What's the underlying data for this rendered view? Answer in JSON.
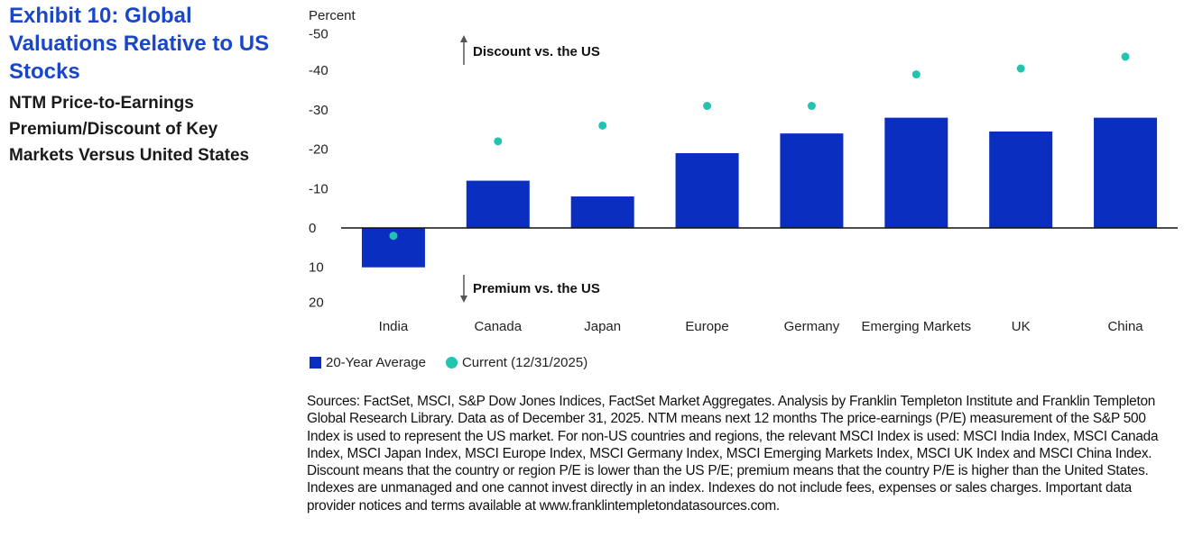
{
  "header": {
    "exhibit_title": "Exhibit 10: Global Valuations Relative to US Stocks",
    "subtitle": "NTM Price-to-Earnings Premium/Discount of Key Markets Versus United States"
  },
  "colors": {
    "title_blue": "#1a47c9",
    "bar": "#0a2fc0",
    "dot": "#22c4b0"
  },
  "chart_data": {
    "type": "bar",
    "title": "NTM Price-to-Earnings Premium/Discount of Key Markets Versus United States",
    "ylabel": "Percent",
    "xlabel": "",
    "y_inverted": true,
    "ylim": [
      -50,
      20
    ],
    "yticks": [
      -50,
      -40,
      -30,
      -20,
      -10,
      0,
      10,
      20
    ],
    "ytick_labels": [
      "-50",
      "-40",
      "-30",
      "-20",
      "-10",
      "0",
      "10",
      "20"
    ],
    "grid": false,
    "categories": [
      "India",
      "Canada",
      "Japan",
      "Europe",
      "Germany",
      "Emerging Markets",
      "UK",
      "China"
    ],
    "series": [
      {
        "name": "20-Year Average",
        "type": "bar",
        "values": [
          10,
          -12,
          -8,
          -19,
          -24,
          -28,
          -24.5,
          -28
        ]
      },
      {
        "name": "Current (12/31/2025)",
        "type": "scatter",
        "values": [
          2,
          -22,
          -26,
          -31,
          -31,
          -39,
          -40.5,
          -43.5
        ]
      }
    ],
    "annotations": [
      {
        "text": "Discount vs. the US",
        "direction": "up"
      },
      {
        "text": "Premium vs. the US",
        "direction": "down"
      }
    ],
    "legend_position": "bottom-left"
  },
  "legend": {
    "bar_label": "20-Year Average",
    "dot_label": "Current (12/31/2025)"
  },
  "sources": "Sources: FactSet, MSCI, S&P Dow Jones Indices, FactSet Market Aggregates. Analysis by Franklin Templeton Institute and Franklin Templeton Global Research Library. Data as of December 31, 2025. NTM means next 12 months The price-earnings (P/E) measurement of the S&P 500 Index is used to represent the US market. For non-US countries and regions, the relevant MSCI Index is used: MSCI India Index, MSCI Canada Index, MSCI Japan Index, MSCI Europe Index, MSCI Germany Index, MSCI Emerging Markets Index, MSCI UK Index and MSCI China Index. Discount means that the country or region P/E is lower than the US P/E; premium means that the country P/E is higher than the United States. Indexes are unmanaged and one cannot invest directly in an index. Indexes do not include fees, expenses or sales charges. Important data provider notices and terms available at www.franklintempletondatasources.com."
}
